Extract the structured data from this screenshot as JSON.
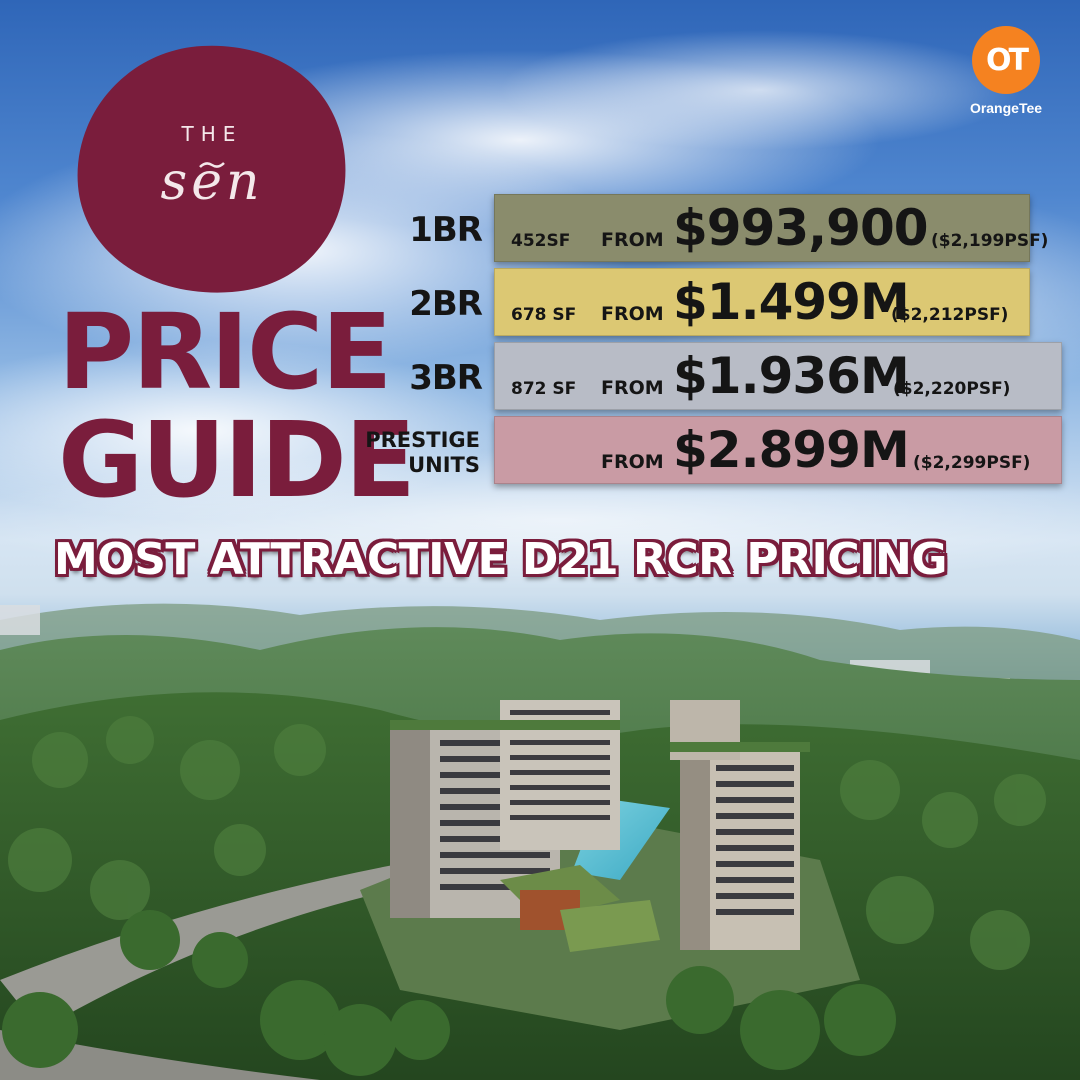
{
  "logo": {
    "the": "THE",
    "sen": "sen"
  },
  "headline": {
    "line1": "PRICE",
    "line2": "GUIDE"
  },
  "brand": {
    "name": "OrangeTee",
    "mark": "OT"
  },
  "rows": [
    {
      "label": "1BR",
      "size": "452SF",
      "from": "FROM",
      "price": "$993,900",
      "psf": "($2,199PSF)",
      "color": "#8a8c6c"
    },
    {
      "label": "2BR",
      "size": "678 SF",
      "from": "FROM",
      "price": "$1.499M",
      "psf": "($2,212PSF)",
      "color": "#dcc873"
    },
    {
      "label": "3BR",
      "size": "872 SF",
      "from": "FROM",
      "price": "$1.936M",
      "psf": "($2,220PSF)",
      "color": "#b8bcc6"
    },
    {
      "label_line1": "PRESTIGE",
      "label_line2": "UNITS",
      "from": "FROM",
      "price": "$2.899M",
      "psf": "($2,299PSF)",
      "color": "#c99ba4"
    }
  ],
  "tagline": "MOST ATTRACTIVE D21 RCR PRICING",
  "colors": {
    "brand": "#7a1d3c",
    "orange": "#f58220"
  }
}
